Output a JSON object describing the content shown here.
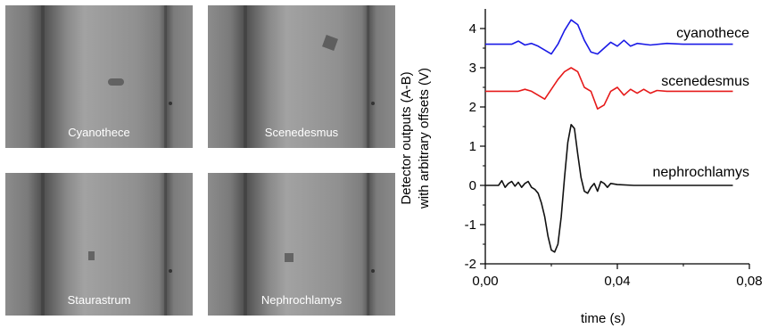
{
  "panels": [
    {
      "label": "Cyanothece"
    },
    {
      "label": "Scenedesmus"
    },
    {
      "label": "Staurastrum"
    },
    {
      "label": "Nephrochlamys"
    }
  ],
  "chart_data": {
    "type": "line",
    "xlabel": "time (s)",
    "ylabel_line1": "Detector outputs (A-B)",
    "ylabel_line2": "with arbitrary offsets (V)",
    "xlim": [
      0,
      0.08
    ],
    "ylim": [
      -2,
      4.5
    ],
    "x_ticks": [
      0,
      0.04,
      0.08
    ],
    "x_tick_labels": [
      "0,00",
      "0,04",
      "0,08"
    ],
    "y_ticks": [
      -2,
      -1,
      0,
      1,
      2,
      3,
      4
    ],
    "y_tick_labels": [
      "-2",
      "-1",
      "0",
      "1",
      "2",
      "3",
      "4"
    ],
    "grid": false,
    "series": [
      {
        "name": "cyanothece",
        "color": "#1a1ae6",
        "x": [
          0,
          0.008,
          0.01,
          0.012,
          0.014,
          0.016,
          0.018,
          0.02,
          0.022,
          0.024,
          0.026,
          0.028,
          0.03,
          0.032,
          0.034,
          0.036,
          0.038,
          0.04,
          0.042,
          0.044,
          0.046,
          0.05,
          0.055,
          0.06,
          0.075
        ],
        "y": [
          3.6,
          3.6,
          3.68,
          3.58,
          3.62,
          3.55,
          3.45,
          3.35,
          3.6,
          3.95,
          4.22,
          4.1,
          3.7,
          3.4,
          3.35,
          3.5,
          3.65,
          3.55,
          3.7,
          3.55,
          3.62,
          3.58,
          3.62,
          3.6,
          3.6
        ]
      },
      {
        "name": "scenedesmus",
        "color": "#e61a1a",
        "x": [
          0,
          0.01,
          0.012,
          0.014,
          0.016,
          0.018,
          0.02,
          0.022,
          0.024,
          0.026,
          0.028,
          0.03,
          0.032,
          0.034,
          0.036,
          0.038,
          0.04,
          0.042,
          0.044,
          0.046,
          0.048,
          0.05,
          0.052,
          0.055,
          0.06,
          0.075
        ],
        "y": [
          2.4,
          2.4,
          2.45,
          2.4,
          2.3,
          2.2,
          2.45,
          2.7,
          2.9,
          3.0,
          2.9,
          2.5,
          2.4,
          1.95,
          2.05,
          2.4,
          2.5,
          2.3,
          2.45,
          2.35,
          2.45,
          2.35,
          2.42,
          2.4,
          2.4,
          2.4
        ]
      },
      {
        "name": "nephrochlamys",
        "color": "#111111",
        "x": [
          0,
          0.004,
          0.005,
          0.006,
          0.007,
          0.008,
          0.009,
          0.01,
          0.011,
          0.012,
          0.013,
          0.014,
          0.015,
          0.016,
          0.017,
          0.018,
          0.019,
          0.02,
          0.021,
          0.022,
          0.023,
          0.024,
          0.025,
          0.026,
          0.027,
          0.028,
          0.029,
          0.03,
          0.031,
          0.032,
          0.033,
          0.034,
          0.035,
          0.036,
          0.037,
          0.038,
          0.04,
          0.045,
          0.05,
          0.06,
          0.075
        ],
        "y": [
          0,
          0.0,
          0.12,
          -0.05,
          0.05,
          0.1,
          -0.02,
          0.08,
          -0.05,
          0.05,
          0.1,
          -0.05,
          -0.1,
          -0.2,
          -0.45,
          -0.8,
          -1.3,
          -1.65,
          -1.7,
          -1.5,
          -0.8,
          0.2,
          1.1,
          1.55,
          1.45,
          0.8,
          0.2,
          -0.15,
          -0.2,
          -0.05,
          0.05,
          -0.15,
          0.1,
          0.05,
          -0.05,
          0.05,
          0.02,
          0.0,
          0.0,
          0.0,
          0.0
        ]
      }
    ]
  }
}
